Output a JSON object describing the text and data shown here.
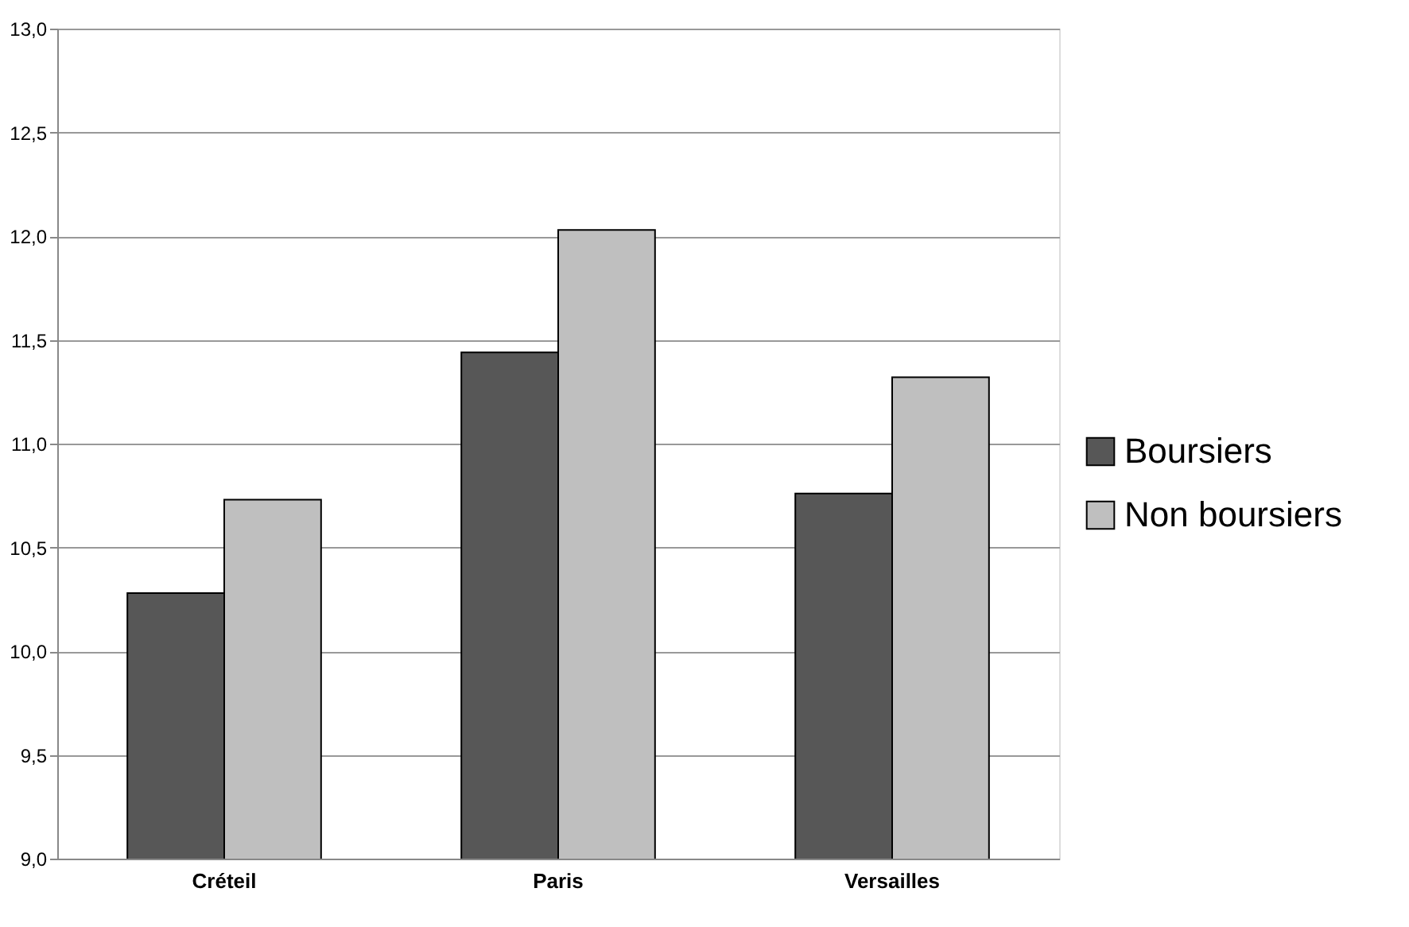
{
  "chart_data": {
    "type": "bar",
    "categories": [
      "Créteil",
      "Paris",
      "Versailles"
    ],
    "series": [
      {
        "name": "Boursiers",
        "color": "#575757",
        "values": [
          10.28,
          11.44,
          10.76
        ]
      },
      {
        "name": "Non boursiers",
        "color": "#bfbfbf",
        "values": [
          10.73,
          12.03,
          11.32
        ]
      }
    ],
    "ylim": [
      9.0,
      13.0
    ],
    "yticks": [
      {
        "value": 9.0,
        "label": "9,0"
      },
      {
        "value": 9.5,
        "label": "9,5"
      },
      {
        "value": 10.0,
        "label": "10,0"
      },
      {
        "value": 10.5,
        "label": "10,5"
      },
      {
        "value": 11.0,
        "label": "11,0"
      },
      {
        "value": 11.5,
        "label": "11,5"
      },
      {
        "value": 12.0,
        "label": "12,0"
      },
      {
        "value": 12.5,
        "label": "12,5"
      },
      {
        "value": 13.0,
        "label": "13,0"
      }
    ],
    "grid": "y",
    "legend": "right"
  }
}
